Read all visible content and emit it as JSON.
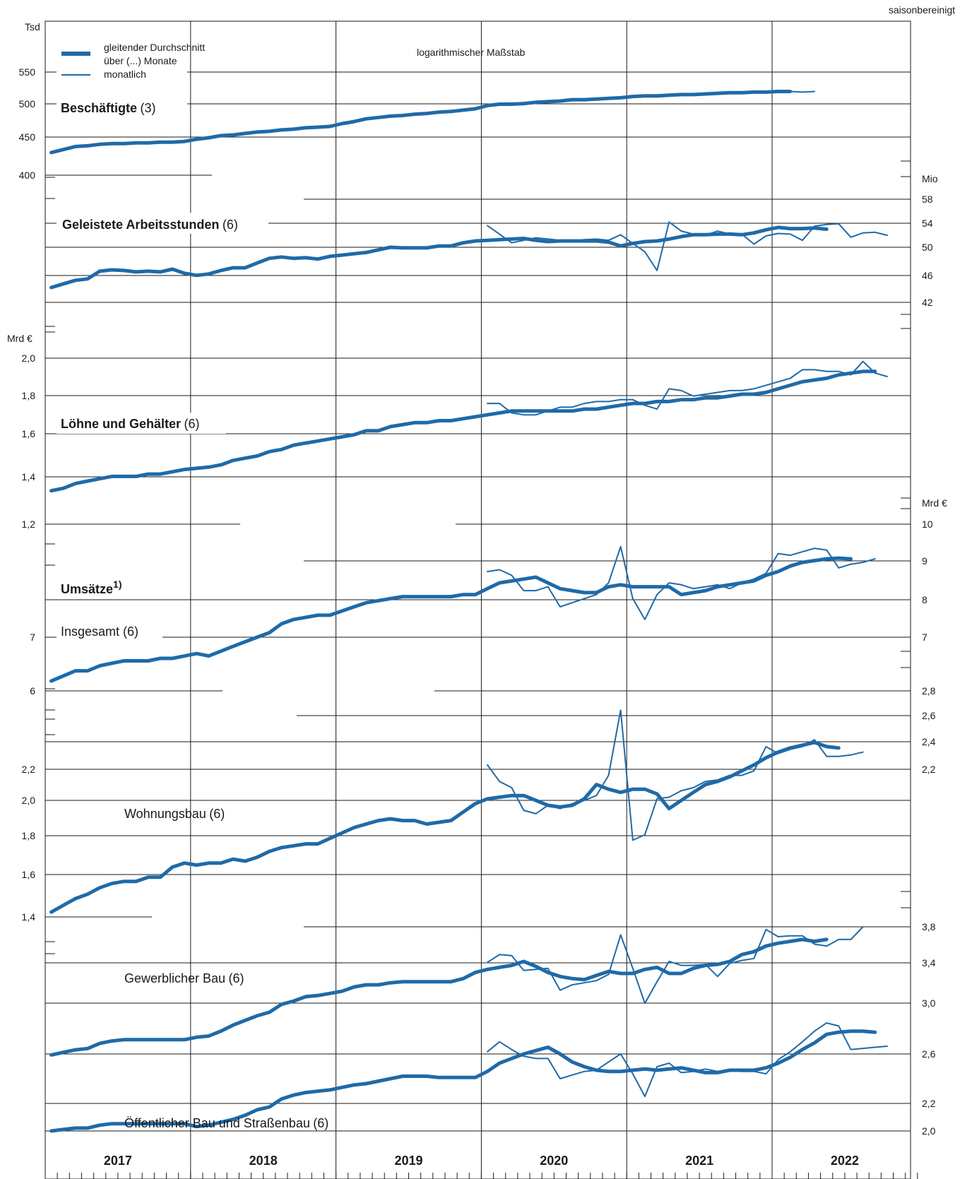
{
  "page": {
    "header_note": "saisonbereinigt",
    "scale_note": "logarithmischer Maßstab",
    "legend": {
      "moving_average": [
        "gleitender Durchschnitt",
        "über (...) Monate"
      ],
      "monthly": "monatlich"
    },
    "colors": {
      "line": "#1f6aa8",
      "grid": "#1a1a1a",
      "text": "#1a1a1a"
    }
  },
  "chart_data": [
    {
      "type": "line",
      "title": "Beschäftigte",
      "title_suffix": "(3)",
      "unit_label": "Tsd",
      "scale": "log",
      "y_ticks": [
        "400",
        "450",
        "500",
        "550"
      ],
      "x_start": "2017-01",
      "series": [
        {
          "name": "gleitender Durchschnitt über (3) Monate",
          "start": "2017-01",
          "values": [
            429,
            433,
            437,
            438,
            440,
            441,
            441,
            442,
            442,
            443,
            443,
            444,
            447,
            449,
            452,
            453,
            455,
            457,
            458,
            460,
            461,
            463,
            464,
            465,
            469,
            472,
            476,
            478,
            480,
            481,
            483,
            484,
            486,
            487,
            489,
            491,
            496,
            498,
            498,
            499,
            501,
            502,
            503,
            505,
            505,
            506,
            507,
            508,
            510,
            511,
            511,
            512,
            513,
            513,
            514,
            515,
            516,
            516,
            517,
            517,
            518,
            518
          ]
        },
        {
          "name": "monatlich",
          "start": "2020-01",
          "values": [
            496,
            499,
            500,
            499,
            500,
            502,
            503,
            505,
            505,
            506,
            507,
            508,
            510,
            510,
            511,
            512,
            513,
            513,
            514,
            515,
            516,
            516,
            517,
            517,
            518,
            518,
            517,
            518
          ]
        }
      ]
    },
    {
      "type": "line",
      "title": "Geleistete Arbeitsstunden",
      "title_suffix": "(6)",
      "unit_label": "Mio",
      "scale": "log",
      "y_ticks": [
        "42",
        "46",
        "50",
        "54",
        "58"
      ],
      "series": [
        {
          "name": "gleitender Durchschnitt über (6) Monate",
          "start": "2017-01",
          "values": [
            44.0,
            44.5,
            45.0,
            45.2,
            46.3,
            46.5,
            46.4,
            46.2,
            46.3,
            46.2,
            46.6,
            46.0,
            45.7,
            45.9,
            46.4,
            46.8,
            46.8,
            47.5,
            48.2,
            48.4,
            48.2,
            48.3,
            48.1,
            48.5,
            48.7,
            48.9,
            49.1,
            49.5,
            49.9,
            49.8,
            49.8,
            49.8,
            50.1,
            50.1,
            50.6,
            50.9,
            51.0,
            51.1,
            51.2,
            51.3,
            51.0,
            50.8,
            50.9,
            50.9,
            50.9,
            50.9,
            50.7,
            50.1,
            50.5,
            50.8,
            50.9,
            51.2,
            51.6,
            51.9,
            51.9,
            52.0,
            52.0,
            51.9,
            52.2,
            52.7,
            53.1,
            52.9,
            52.9,
            53.0,
            52.8
          ]
        },
        {
          "name": "monatlich",
          "start": "2020-01",
          "values": [
            53.4,
            52.0,
            50.6,
            51.0,
            51.4,
            51.2,
            51.0,
            50.9,
            51.1,
            51.2,
            51.0,
            51.9,
            50.5,
            49.2,
            46.4,
            54.0,
            52.5,
            52.0,
            51.8,
            52.5,
            52.0,
            52.0,
            50.4,
            51.7,
            52.1,
            52.0,
            51.0,
            53.3,
            53.6,
            53.7,
            51.5,
            52.2,
            52.3,
            51.8
          ]
        }
      ]
    },
    {
      "type": "line",
      "title": "Löhne und Gehälter",
      "title_suffix": "(6)",
      "unit_label": "Mrd €",
      "scale": "log",
      "y_ticks": [
        "1,2",
        "1,4",
        "1,6",
        "1,8",
        "2,0"
      ],
      "series": [
        {
          "name": "gleitender Durchschnitt über (6) Monate",
          "start": "2017-01",
          "values": [
            1.33,
            1.34,
            1.36,
            1.37,
            1.38,
            1.39,
            1.39,
            1.39,
            1.4,
            1.4,
            1.41,
            1.42,
            1.425,
            1.43,
            1.44,
            1.46,
            1.47,
            1.48,
            1.5,
            1.51,
            1.53,
            1.54,
            1.55,
            1.56,
            1.57,
            1.58,
            1.6,
            1.6,
            1.62,
            1.63,
            1.64,
            1.64,
            1.65,
            1.65,
            1.66,
            1.67,
            1.68,
            1.69,
            1.7,
            1.7,
            1.7,
            1.7,
            1.7,
            1.7,
            1.71,
            1.71,
            1.72,
            1.73,
            1.74,
            1.74,
            1.75,
            1.75,
            1.76,
            1.76,
            1.77,
            1.77,
            1.78,
            1.79,
            1.79,
            1.8,
            1.82,
            1.84,
            1.86,
            1.87,
            1.88,
            1.9,
            1.91,
            1.92,
            1.92
          ]
        },
        {
          "name": "monatlich",
          "start": "2020-01",
          "values": [
            1.74,
            1.74,
            1.69,
            1.68,
            1.68,
            1.7,
            1.72,
            1.72,
            1.74,
            1.75,
            1.75,
            1.76,
            1.76,
            1.73,
            1.71,
            1.82,
            1.81,
            1.78,
            1.79,
            1.8,
            1.81,
            1.81,
            1.82,
            1.84,
            1.86,
            1.88,
            1.93,
            1.93,
            1.92,
            1.92,
            1.9,
            1.98,
            1.91,
            1.89
          ]
        }
      ]
    },
    {
      "type": "line",
      "title": "Umsätze",
      "title_footnote": "1)",
      "subtitle": "Insgesamt (6)",
      "unit_label": "Mrd €",
      "scale": "log",
      "y_ticks_left": [
        "6",
        "7"
      ],
      "y_ticks_right": [
        "7",
        "8",
        "9",
        "10"
      ],
      "series": [
        {
          "name": "gleitender Durchschnitt über (6) Monate",
          "start": "2017-01",
          "values": [
            6.1,
            6.2,
            6.3,
            6.3,
            6.4,
            6.45,
            6.5,
            6.5,
            6.5,
            6.55,
            6.55,
            6.6,
            6.65,
            6.6,
            6.7,
            6.8,
            6.9,
            7.0,
            7.1,
            7.3,
            7.4,
            7.45,
            7.5,
            7.5,
            7.6,
            7.7,
            7.8,
            7.85,
            7.9,
            7.95,
            7.95,
            7.95,
            7.95,
            7.95,
            8.0,
            8.0,
            8.15,
            8.3,
            8.35,
            8.4,
            8.45,
            8.3,
            8.15,
            8.1,
            8.05,
            8.05,
            8.2,
            8.25,
            8.2,
            8.2,
            8.2,
            8.2,
            8.0,
            8.05,
            8.1,
            8.2,
            8.25,
            8.3,
            8.35,
            8.5,
            8.6,
            8.75,
            8.85,
            8.9,
            8.95,
            8.97,
            8.95
          ]
        },
        {
          "name": "monatlich",
          "start": "2020-01",
          "values": [
            8.6,
            8.65,
            8.5,
            8.1,
            8.1,
            8.2,
            7.7,
            7.8,
            7.9,
            8.0,
            8.3,
            9.3,
            7.9,
            7.4,
            8.0,
            8.3,
            8.25,
            8.15,
            8.2,
            8.25,
            8.15,
            8.3,
            8.4,
            8.55,
            9.1,
            9.05,
            9.15,
            9.25,
            9.2,
            8.7,
            8.8,
            8.85,
            8.95
          ]
        }
      ]
    },
    {
      "type": "line",
      "title": "Wohnungsbau",
      "title_suffix": "(6)",
      "unit_label": "Mrd €",
      "scale": "log",
      "y_ticks_left": [
        "1,4",
        "1,6",
        "1,8",
        "2,0",
        "2,2"
      ],
      "y_ticks_right": [
        "2,2",
        "2,4",
        "2,6",
        "2,8"
      ],
      "series": [
        {
          "name": "gleitender Durchschnitt über (6) Monate",
          "start": "2017-01",
          "values": [
            1.4,
            1.43,
            1.46,
            1.48,
            1.51,
            1.53,
            1.54,
            1.54,
            1.56,
            1.56,
            1.61,
            1.63,
            1.62,
            1.63,
            1.63,
            1.65,
            1.64,
            1.66,
            1.69,
            1.71,
            1.72,
            1.73,
            1.73,
            1.76,
            1.79,
            1.82,
            1.84,
            1.86,
            1.87,
            1.86,
            1.86,
            1.84,
            1.85,
            1.86,
            1.91,
            1.96,
            1.99,
            2.0,
            2.01,
            2.01,
            1.98,
            1.95,
            1.94,
            1.95,
            1.99,
            2.08,
            2.05,
            2.03,
            2.05,
            2.05,
            2.02,
            1.93,
            1.98,
            2.03,
            2.08,
            2.1,
            2.13,
            2.17,
            2.21,
            2.26,
            2.3,
            2.33,
            2.35,
            2.37,
            2.34,
            2.33
          ]
        },
        {
          "name": "monatlich",
          "start": "2020-01",
          "values": [
            2.21,
            2.1,
            2.06,
            1.92,
            1.9,
            1.95,
            1.93,
            1.96,
            1.98,
            2.01,
            2.14,
            2.62,
            1.75,
            1.78,
            1.99,
            2.0,
            2.04,
            2.06,
            2.1,
            2.11,
            2.14,
            2.14,
            2.17,
            2.34,
            2.29,
            2.32,
            2.34,
            2.39,
            2.27,
            2.27,
            2.28,
            2.3
          ]
        }
      ]
    },
    {
      "type": "line",
      "title": "Gewerblicher Bau",
      "title_suffix": "(6)",
      "unit_label": "Mrd €",
      "scale": "log",
      "y_ticks_right": [
        "3,0",
        "3,4",
        "3,8"
      ],
      "series": [
        {
          "name": "gleitender Durchschnitt über (6) Monate",
          "start": "2017-01",
          "values": [
            2.6,
            2.62,
            2.64,
            2.65,
            2.69,
            2.71,
            2.72,
            2.72,
            2.72,
            2.72,
            2.72,
            2.72,
            2.74,
            2.75,
            2.79,
            2.84,
            2.88,
            2.92,
            2.95,
            3.02,
            3.05,
            3.09,
            3.1,
            3.12,
            3.14,
            3.18,
            3.2,
            3.2,
            3.22,
            3.23,
            3.23,
            3.23,
            3.23,
            3.23,
            3.26,
            3.32,
            3.35,
            3.37,
            3.39,
            3.43,
            3.38,
            3.32,
            3.28,
            3.26,
            3.25,
            3.29,
            3.33,
            3.31,
            3.31,
            3.35,
            3.37,
            3.31,
            3.31,
            3.36,
            3.39,
            3.4,
            3.43,
            3.5,
            3.53,
            3.59,
            3.62,
            3.64,
            3.66,
            3.64,
            3.66
          ]
        },
        {
          "name": "monatlich",
          "start": "2020-01",
          "values": [
            3.42,
            3.5,
            3.49,
            3.34,
            3.35,
            3.36,
            3.15,
            3.2,
            3.22,
            3.24,
            3.3,
            3.71,
            3.36,
            3.03,
            3.23,
            3.43,
            3.39,
            3.39,
            3.4,
            3.28,
            3.41,
            3.44,
            3.46,
            3.77,
            3.69,
            3.7,
            3.7,
            3.61,
            3.59,
            3.66,
            3.66,
            3.8
          ]
        }
      ]
    },
    {
      "type": "line",
      "title": "Öffentlicher Bau und Straßenbau",
      "title_suffix": "(6)",
      "unit_label": "Mrd €",
      "scale": "log",
      "y_ticks_right": [
        "2,0",
        "2,2",
        "2,6"
      ],
      "series": [
        {
          "name": "gleitender Durchschnitt über (6) Monate",
          "start": "2017-01",
          "values": [
            2.0,
            2.01,
            2.02,
            2.02,
            2.04,
            2.05,
            2.05,
            2.05,
            2.05,
            2.05,
            2.05,
            2.05,
            2.03,
            2.04,
            2.06,
            2.08,
            2.11,
            2.15,
            2.17,
            2.23,
            2.26,
            2.28,
            2.29,
            2.3,
            2.32,
            2.34,
            2.35,
            2.37,
            2.39,
            2.41,
            2.41,
            2.41,
            2.4,
            2.4,
            2.4,
            2.4,
            2.45,
            2.52,
            2.56,
            2.6,
            2.63,
            2.66,
            2.6,
            2.53,
            2.49,
            2.46,
            2.45,
            2.45,
            2.46,
            2.47,
            2.46,
            2.47,
            2.48,
            2.46,
            2.44,
            2.44,
            2.46,
            2.46,
            2.46,
            2.48,
            2.52,
            2.57,
            2.64,
            2.7,
            2.78,
            2.8,
            2.81,
            2.81,
            2.8
          ]
        },
        {
          "name": "monatlich",
          "start": "2020-01",
          "values": [
            2.62,
            2.71,
            2.64,
            2.58,
            2.56,
            2.56,
            2.39,
            2.42,
            2.45,
            2.46,
            2.53,
            2.6,
            2.43,
            2.25,
            2.49,
            2.52,
            2.44,
            2.45,
            2.47,
            2.45,
            2.46,
            2.45,
            2.45,
            2.43,
            2.55,
            2.62,
            2.71,
            2.81,
            2.89,
            2.86,
            2.64,
            2.65,
            2.66,
            2.67
          ]
        }
      ]
    }
  ],
  "x_axis": {
    "years": [
      "2017",
      "2018",
      "2019",
      "2020",
      "2021",
      "2022"
    ]
  }
}
